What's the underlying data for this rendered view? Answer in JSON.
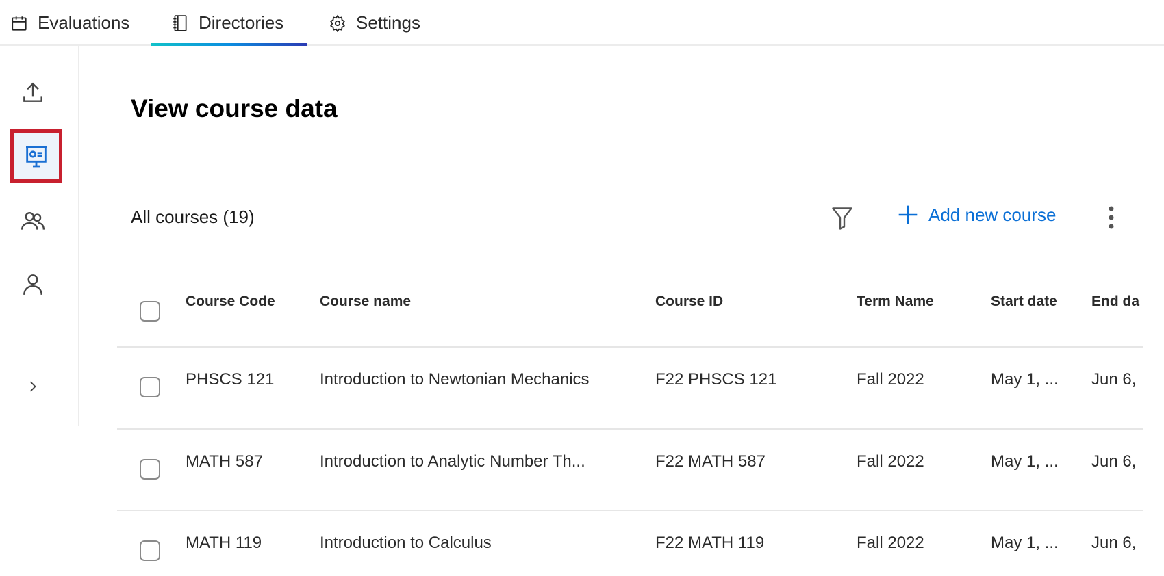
{
  "tabs": [
    {
      "label": "Evaluations",
      "icon": "calendar-icon"
    },
    {
      "label": "Directories",
      "icon": "notebook-icon",
      "active": true
    },
    {
      "label": "Settings",
      "icon": "gear-icon"
    }
  ],
  "sidebar": {
    "items": [
      {
        "icon": "upload-icon"
      },
      {
        "icon": "presentation-board-icon",
        "selected": true
      },
      {
        "icon": "users-icon"
      },
      {
        "icon": "user-icon"
      },
      {
        "icon": "chevron-right-icon"
      }
    ],
    "highlight_color": "#c8202f"
  },
  "main": {
    "title": "View course data",
    "count_label": "All courses (19)",
    "add_label": "Add new course",
    "accent_color": "#0a6fd6",
    "columns": [
      "Course Code",
      "Course name",
      "Course ID",
      "Term Name",
      "Start date",
      "End da"
    ],
    "rows": [
      [
        "PHSCS 121",
        "Introduction to Newtonian Mechanics",
        "F22 PHSCS 121",
        "Fall 2022",
        "May 1, ...",
        "Jun 6,"
      ],
      [
        "MATH 587",
        "Introduction to Analytic Number Th...",
        "F22 MATH 587",
        "Fall 2022",
        "May 1, ...",
        "Jun 6,"
      ],
      [
        "MATH 119",
        "Introduction to Calculus",
        "F22 MATH 119",
        "Fall 2022",
        "May 1, ...",
        "Jun 6,"
      ]
    ]
  }
}
